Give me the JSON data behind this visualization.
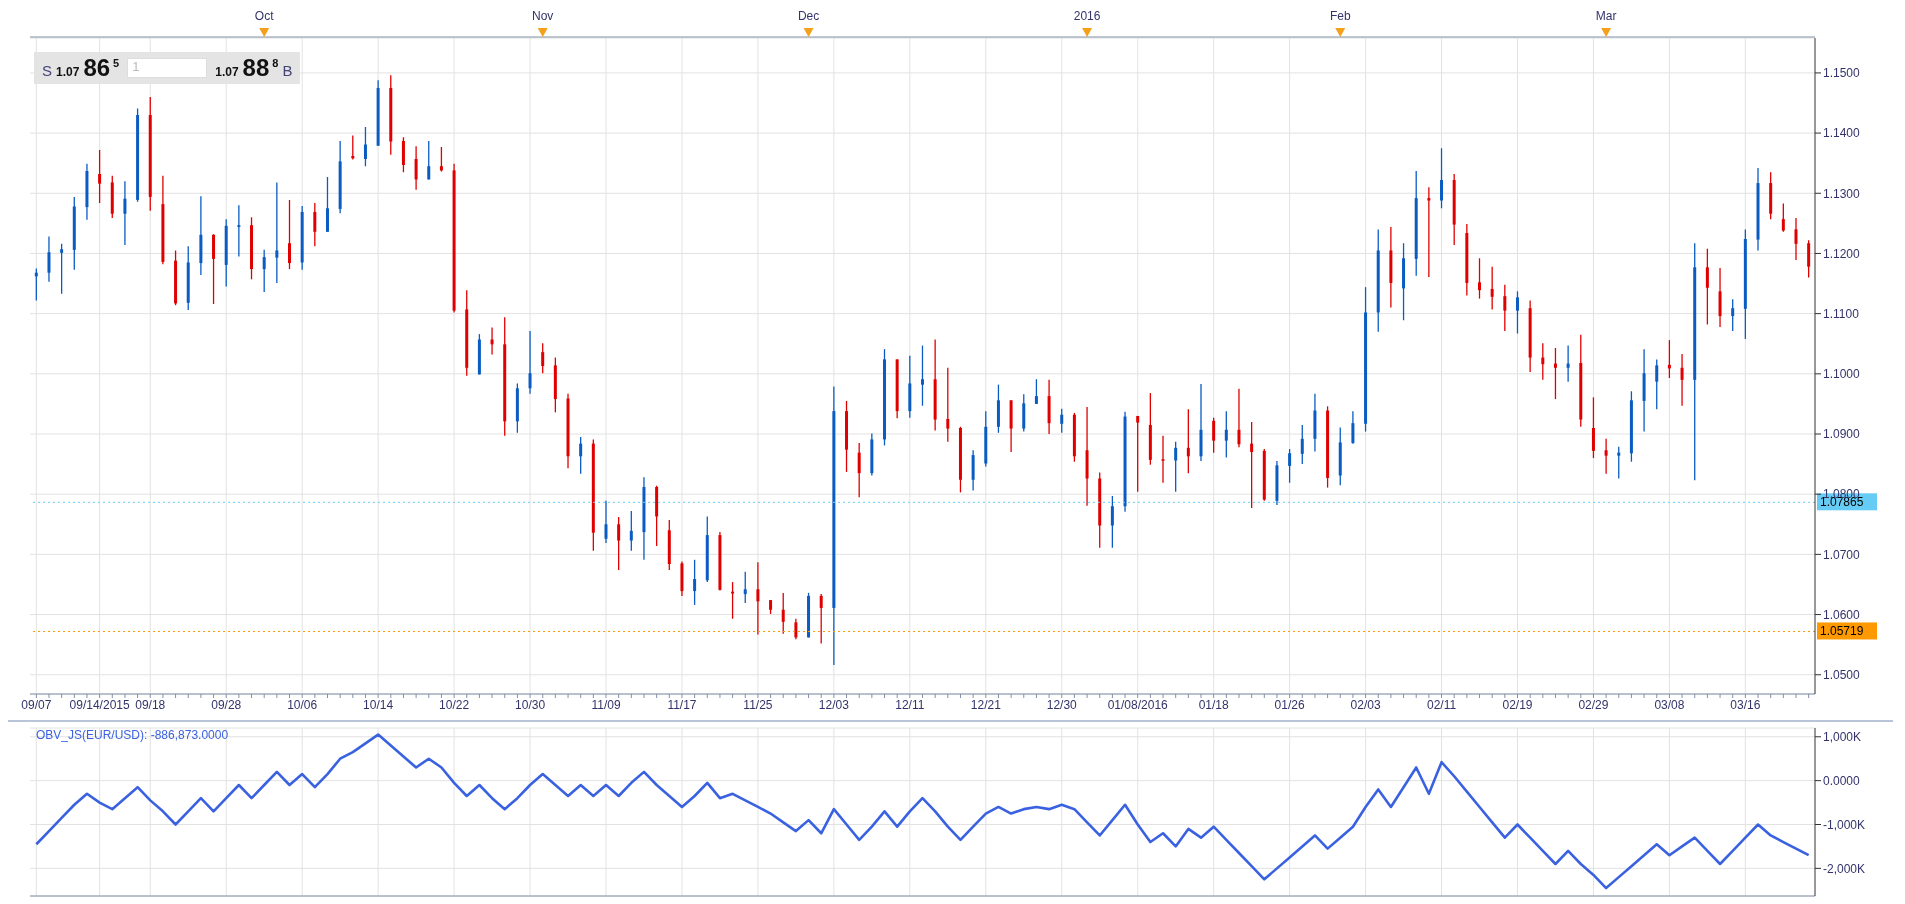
{
  "chart_data": [
    {
      "type": "candlestick",
      "categories": [
        "09/07",
        null,
        null,
        null,
        null,
        "09/14/2015",
        null,
        null,
        null,
        "09/18",
        null,
        null,
        null,
        null,
        null,
        "09/28",
        null,
        null,
        null,
        null,
        null,
        "10/06",
        null,
        null,
        null,
        null,
        null,
        "10/14",
        null,
        null,
        null,
        null,
        null,
        "10/22",
        null,
        null,
        null,
        null,
        null,
        "10/30",
        null,
        null,
        null,
        null,
        null,
        "11/09",
        null,
        null,
        null,
        null,
        null,
        "11/17",
        null,
        null,
        null,
        null,
        null,
        "11/25",
        null,
        null,
        null,
        null,
        null,
        "12/03",
        null,
        null,
        null,
        null,
        null,
        "12/11",
        null,
        null,
        null,
        null,
        null,
        "12/21",
        null,
        null,
        null,
        null,
        null,
        "12/30",
        null,
        null,
        null,
        null,
        null,
        "01/08/2016",
        null,
        null,
        null,
        null,
        null,
        "01/18",
        null,
        null,
        null,
        null,
        null,
        "01/26",
        null,
        null,
        null,
        null,
        null,
        "02/03",
        null,
        null,
        null,
        null,
        null,
        "02/11",
        null,
        null,
        null,
        null,
        null,
        "02/19",
        null,
        null,
        null,
        null,
        null,
        "02/29",
        null,
        null,
        null,
        null,
        null,
        "03/08",
        null,
        null,
        null,
        null,
        null,
        "03/16",
        null,
        null,
        null,
        null,
        null
      ],
      "ohlc": [
        [
          1.1162,
          1.1175,
          1.1122,
          1.1168
        ],
        [
          1.1168,
          1.1228,
          1.1153,
          1.1202
        ],
        [
          1.1201,
          1.1216,
          1.1133,
          1.1207
        ],
        [
          1.1206,
          1.1294,
          1.1173,
          1.1278
        ],
        [
          1.1277,
          1.1349,
          1.1256,
          1.1337
        ],
        [
          1.1332,
          1.1372,
          1.1284,
          1.1316
        ],
        [
          1.1318,
          1.1329,
          1.1259,
          1.1266
        ],
        [
          1.1266,
          1.132,
          1.1214,
          1.1291
        ],
        [
          1.1289,
          1.1441,
          1.1286,
          1.143
        ],
        [
          1.143,
          1.146,
          1.1271,
          1.1294
        ],
        [
          1.1282,
          1.1329,
          1.1182,
          1.1186
        ],
        [
          1.1188,
          1.1205,
          1.1114,
          1.1117
        ],
        [
          1.1118,
          1.1212,
          1.1106,
          1.1185
        ],
        [
          1.1184,
          1.1295,
          1.1164,
          1.1231
        ],
        [
          1.1231,
          1.1232,
          1.1116,
          1.1191
        ],
        [
          1.1181,
          1.1257,
          1.1145,
          1.1246
        ],
        [
          1.1244,
          1.128,
          1.1195,
          1.1247
        ],
        [
          1.1247,
          1.126,
          1.1157,
          1.1174
        ],
        [
          1.1174,
          1.1206,
          1.1136,
          1.1194
        ],
        [
          1.1193,
          1.1318,
          1.1151,
          1.1205
        ],
        [
          1.1217,
          1.1289,
          1.1174,
          1.1184
        ],
        [
          1.1185,
          1.1279,
          1.1173,
          1.1269
        ],
        [
          1.1269,
          1.1284,
          1.1212,
          1.1236
        ],
        [
          1.1236,
          1.1327,
          1.1236,
          1.1275
        ],
        [
          1.1274,
          1.1387,
          1.1267,
          1.1353
        ],
        [
          1.1362,
          1.1396,
          1.1356,
          1.1358
        ],
        [
          1.1357,
          1.141,
          1.1345,
          1.1381
        ],
        [
          1.1379,
          1.1488,
          1.1379,
          1.1475
        ],
        [
          1.1475,
          1.1496,
          1.1364,
          1.1386
        ],
        [
          1.1387,
          1.1393,
          1.1335,
          1.1347
        ],
        [
          1.1357,
          1.1378,
          1.1306,
          1.1323
        ],
        [
          1.1323,
          1.1387,
          1.1323,
          1.1345
        ],
        [
          1.1345,
          1.1377,
          1.1336,
          1.1338
        ],
        [
          1.1338,
          1.1349,
          1.1102,
          1.1105
        ],
        [
          1.1107,
          1.1139,
          1.0997,
          1.101
        ],
        [
          1.0999,
          1.1066,
          1.0999,
          1.1057
        ],
        [
          1.1057,
          1.1077,
          1.1032,
          1.1049
        ],
        [
          1.1049,
          1.1094,
          1.0897,
          1.0921
        ],
        [
          1.0921,
          1.0984,
          1.0902,
          1.0976
        ],
        [
          1.0976,
          1.1071,
          1.0967,
          1.1001
        ],
        [
          1.1036,
          1.1051,
          1.1001,
          1.1013
        ],
        [
          1.1014,
          1.1027,
          1.0936,
          1.0958
        ],
        [
          1.0959,
          1.0967,
          1.0843,
          1.0863
        ],
        [
          1.0863,
          1.0895,
          1.0834,
          1.0884
        ],
        [
          1.0884,
          1.0891,
          1.0706,
          1.0736
        ],
        [
          1.0726,
          1.0789,
          1.0719,
          1.075
        ],
        [
          1.075,
          1.0762,
          1.0674,
          1.0723
        ],
        [
          1.0723,
          1.0772,
          1.0706,
          1.0739
        ],
        [
          1.0737,
          1.0828,
          1.0691,
          1.0812
        ],
        [
          1.0812,
          1.0814,
          1.0714,
          1.0763
        ],
        [
          1.074,
          1.0757,
          1.0674,
          1.0684
        ],
        [
          1.0685,
          1.0688,
          1.0631,
          1.0639
        ],
        [
          1.0639,
          1.0691,
          1.0616,
          1.0659
        ],
        [
          1.0657,
          1.0763,
          1.0654,
          1.0732
        ],
        [
          1.0732,
          1.0737,
          1.064,
          1.0641
        ],
        [
          1.0638,
          1.0654,
          1.0593,
          1.0635
        ],
        [
          1.0634,
          1.0671,
          1.0619,
          1.0642
        ],
        [
          1.0642,
          1.0687,
          1.0567,
          1.0622
        ],
        [
          1.0624,
          1.0624,
          1.0601,
          1.0608
        ],
        [
          1.0608,
          1.0636,
          1.0568,
          1.0588
        ],
        [
          1.0587,
          1.0593,
          1.0559,
          1.0562
        ],
        [
          1.0562,
          1.0636,
          1.0562,
          1.0631
        ],
        [
          1.0631,
          1.0634,
          1.0552,
          1.0611
        ],
        [
          1.0611,
          1.0979,
          1.0516,
          1.0938
        ],
        [
          1.0938,
          1.0955,
          1.0837,
          1.0874
        ],
        [
          1.0869,
          1.0885,
          1.0795,
          1.0835
        ],
        [
          1.0835,
          1.0901,
          1.0831,
          1.0891
        ],
        [
          1.0891,
          1.1041,
          1.0881,
          1.1024
        ],
        [
          1.1024,
          1.1024,
          1.0926,
          1.0938
        ],
        [
          1.0938,
          1.103,
          1.0927,
          1.0984
        ],
        [
          1.0982,
          1.1047,
          1.0947,
          1.0991
        ],
        [
          1.0991,
          1.1057,
          1.0906,
          1.0924
        ],
        [
          1.0925,
          1.101,
          1.0887,
          1.0909
        ],
        [
          1.091,
          1.0912,
          1.0803,
          1.0824
        ],
        [
          1.0824,
          1.0873,
          1.0806,
          1.0865
        ],
        [
          1.0851,
          1.0938,
          1.0846,
          1.0912
        ],
        [
          1.0912,
          1.0982,
          1.0902,
          1.0956
        ],
        [
          1.0956,
          1.0956,
          1.087,
          1.0909
        ],
        [
          1.0909,
          1.0966,
          1.0904,
          1.0951
        ],
        [
          1.095,
          1.0991,
          1.095,
          1.0963
        ],
        [
          1.0963,
          1.099,
          1.09,
          1.0918
        ],
        [
          1.0917,
          1.0942,
          1.0902,
          1.0932
        ],
        [
          1.0932,
          1.0935,
          1.0854,
          1.0863
        ],
        [
          1.0873,
          1.0945,
          1.0781,
          1.0826
        ],
        [
          1.0826,
          1.0836,
          1.0711,
          1.0748
        ],
        [
          1.0748,
          1.0797,
          1.0711,
          1.078
        ],
        [
          1.078,
          1.0937,
          1.0771,
          1.0929
        ],
        [
          1.093,
          1.093,
          1.0804,
          1.0919
        ],
        [
          1.0915,
          1.0968,
          1.0849,
          1.0857
        ],
        [
          1.0858,
          1.0897,
          1.0819,
          1.0856
        ],
        [
          1.0856,
          1.0887,
          1.0804,
          1.0877
        ],
        [
          1.0877,
          1.0941,
          1.0835,
          1.0863
        ],
        [
          1.0863,
          1.0983,
          1.0855,
          1.0907
        ],
        [
          1.0922,
          1.0927,
          1.0869,
          1.0889
        ],
        [
          1.0889,
          1.0938,
          1.0861,
          1.0907
        ],
        [
          1.0907,
          1.0975,
          1.0878,
          1.0883
        ],
        [
          1.0884,
          1.092,
          1.0777,
          1.087
        ],
        [
          1.0872,
          1.0875,
          1.0789,
          1.0791
        ],
        [
          1.0789,
          1.0855,
          1.0782,
          1.0848
        ],
        [
          1.0847,
          1.0875,
          1.0819,
          1.0868
        ],
        [
          1.0867,
          1.0915,
          1.085,
          1.0892
        ],
        [
          1.0892,
          1.0967,
          1.0871,
          1.0939
        ],
        [
          1.0939,
          1.0946,
          1.0811,
          1.0827
        ],
        [
          1.0831,
          1.0911,
          1.0815,
          1.0886
        ],
        [
          1.0885,
          1.0938,
          1.0884,
          1.0918
        ],
        [
          1.0917,
          1.1144,
          1.0904,
          1.1102
        ],
        [
          1.1102,
          1.124,
          1.107,
          1.1205
        ],
        [
          1.1205,
          1.1244,
          1.111,
          1.1151
        ],
        [
          1.1142,
          1.1217,
          1.1089,
          1.1192
        ],
        [
          1.1191,
          1.1337,
          1.1163,
          1.1292
        ],
        [
          1.1292,
          1.131,
          1.1161,
          1.1288
        ],
        [
          1.1288,
          1.1375,
          1.1275,
          1.1322
        ],
        [
          1.1322,
          1.1332,
          1.1214,
          1.1248
        ],
        [
          1.1234,
          1.1249,
          1.113,
          1.1151
        ],
        [
          1.1152,
          1.1192,
          1.1125,
          1.1139
        ],
        [
          1.1141,
          1.1178,
          1.1107,
          1.1128
        ],
        [
          1.1129,
          1.1148,
          1.1071,
          1.1105
        ],
        [
          1.1105,
          1.1137,
          1.1067,
          1.1127
        ],
        [
          1.1109,
          1.1122,
          1.1003,
          1.1027
        ],
        [
          1.1027,
          1.1051,
          1.099,
          1.1016
        ],
        [
          1.1017,
          1.1043,
          1.0958,
          1.101
        ],
        [
          1.101,
          1.1047,
          1.0987,
          1.1017
        ],
        [
          1.1018,
          1.1065,
          1.0912,
          1.0924
        ],
        [
          1.091,
          1.0961,
          1.086,
          1.0872
        ],
        [
          1.0873,
          1.0892,
          1.0834,
          1.0864
        ],
        [
          1.0864,
          1.0879,
          1.0826,
          1.0869
        ],
        [
          1.0868,
          1.0971,
          1.0854,
          1.0956
        ],
        [
          1.0955,
          1.1041,
          1.0904,
          1.1001
        ],
        [
          1.0987,
          1.1024,
          1.0941,
          1.1014
        ],
        [
          1.1015,
          1.1056,
          1.0993,
          1.1009
        ],
        [
          1.101,
          1.1033,
          1.0947,
          1.099
        ],
        [
          1.099,
          1.1217,
          1.0823,
          1.1177
        ],
        [
          1.1177,
          1.1208,
          1.1082,
          1.1143
        ],
        [
          1.1137,
          1.1176,
          1.1078,
          1.1096
        ],
        [
          1.1096,
          1.1124,
          1.1071,
          1.1109
        ],
        [
          1.1108,
          1.124,
          1.1058,
          1.1224
        ],
        [
          1.1223,
          1.1342,
          1.1205,
          1.1317
        ],
        [
          1.1317,
          1.1335,
          1.1257,
          1.1266
        ],
        [
          1.1257,
          1.1283,
          1.1236,
          1.1238
        ],
        [
          1.124,
          1.1259,
          1.1189,
          1.1216
        ],
        [
          1.1217,
          1.1222,
          1.116,
          1.1178
        ]
      ],
      "colors": [
        "#0a5cc2",
        "#0a5cc2",
        "#0a5cc2",
        "#0a5cc2",
        "#0a5cc2",
        "#e00000",
        "#e00000",
        "#0a5cc2",
        "#0a5cc2",
        "#e00000",
        "#e00000",
        "#e00000",
        "#0a5cc2",
        "#0a5cc2",
        "#e00000",
        "#0a5cc2",
        "#0a5cc2",
        "#e00000",
        "#0a5cc2",
        "#0a5cc2",
        "#e00000",
        "#0a5cc2",
        "#e00000",
        "#0a5cc2",
        "#0a5cc2",
        "#e00000",
        "#0a5cc2",
        "#0a5cc2",
        "#e00000",
        "#e00000",
        "#e00000",
        "#0a5cc2",
        "#e00000",
        "#e00000",
        "#e00000",
        "#0a5cc2",
        "#e00000",
        "#e00000",
        "#0a5cc2",
        "#0a5cc2",
        "#e00000",
        "#e00000",
        "#e00000",
        "#0a5cc2",
        "#e00000",
        "#0a5cc2",
        "#e00000",
        "#0a5cc2",
        "#0a5cc2",
        "#e00000",
        "#e00000",
        "#e00000",
        "#0a5cc2",
        "#0a5cc2",
        "#e00000",
        "#e00000",
        "#0a5cc2",
        "#e00000",
        "#e00000",
        "#e00000",
        "#e00000",
        "#0a5cc2",
        "#e00000",
        "#0a5cc2",
        "#e00000",
        "#e00000",
        "#0a5cc2",
        "#0a5cc2",
        "#e00000",
        "#0a5cc2",
        "#0a5cc2",
        "#e00000",
        "#e00000",
        "#e00000",
        "#0a5cc2",
        "#0a5cc2",
        "#0a5cc2",
        "#e00000",
        "#0a5cc2",
        "#0a5cc2",
        "#e00000",
        "#0a5cc2",
        "#e00000",
        "#e00000",
        "#e00000",
        "#0a5cc2",
        "#0a5cc2",
        "#e00000",
        "#e00000",
        "#e00000",
        "#0a5cc2",
        "#e00000",
        "#0a5cc2",
        "#e00000",
        "#0a5cc2",
        "#e00000",
        "#e00000",
        "#e00000",
        "#0a5cc2",
        "#0a5cc2",
        "#0a5cc2",
        "#0a5cc2",
        "#e00000",
        "#0a5cc2",
        "#0a5cc2",
        "#0a5cc2",
        "#0a5cc2",
        "#e00000",
        "#0a5cc2",
        "#0a5cc2",
        "#e00000",
        "#0a5cc2",
        "#e00000",
        "#e00000",
        "#e00000",
        "#e00000",
        "#e00000",
        "#0a5cc2",
        "#e00000",
        "#e00000",
        "#e00000",
        "#0a5cc2",
        "#e00000",
        "#e00000",
        "#e00000",
        "#0a5cc2",
        "#0a5cc2",
        "#0a5cc2",
        "#0a5cc2",
        "#e00000",
        "#e00000",
        "#0a5cc2",
        "#e00000",
        "#e00000",
        "#0a5cc2",
        "#0a5cc2",
        "#0a5cc2",
        "#e00000",
        "#e00000",
        "#e00000",
        "#e00000"
      ],
      "ylim": [
        1.0468,
        1.1558
      ],
      "yticks": [
        {
          "value": 1.05,
          "label": "1.0500"
        },
        {
          "value": 1.06,
          "label": "1.0600"
        },
        {
          "value": 1.07,
          "label": "1.0700"
        },
        {
          "value": 1.08,
          "label": "1.0800"
        },
        {
          "value": 1.09,
          "label": "1.0900"
        },
        {
          "value": 1.1,
          "label": "1.1000"
        },
        {
          "value": 1.11,
          "label": "1.1100"
        },
        {
          "value": 1.12,
          "label": "1.1200"
        },
        {
          "value": 1.13,
          "label": "1.1300"
        },
        {
          "value": 1.14,
          "label": "1.1400"
        },
        {
          "value": 1.15,
          "label": "1.1500"
        }
      ],
      "grid": true,
      "ref_lines": [
        {
          "axis": "y",
          "value": 1.05719,
          "label": "1.05719",
          "color": "#ff9900",
          "line_style": "dotted"
        },
        {
          "axis": "y",
          "value": 1.07865,
          "label": "1.07865",
          "color": "#66ccf5",
          "line_style": "dotted"
        }
      ],
      "annotations": [
        "S 1.07 86$^{5}$",
        "1",
        "1.07 88$^{8}$ B",
        "Oct",
        "Nov",
        "Dec",
        "2016",
        "Feb",
        "Mar"
      ]
    },
    {
      "type": "line",
      "categories": [
        null,
        null,
        null,
        null,
        null,
        null,
        null,
        null,
        null,
        null,
        null,
        null,
        null,
        null,
        null,
        null,
        null,
        null,
        null,
        null,
        null,
        null,
        null,
        null,
        null,
        null,
        null,
        null,
        null,
        null,
        null,
        null,
        null,
        null,
        null,
        null,
        null,
        null,
        null,
        null,
        null,
        null,
        null,
        null,
        null,
        null,
        null,
        null,
        null,
        null,
        null,
        null,
        null,
        null,
        null,
        null,
        null,
        null,
        null,
        null,
        null,
        null,
        null,
        null,
        null,
        null,
        null,
        null,
        null,
        null,
        null,
        null,
        null,
        null,
        null,
        null,
        null,
        null,
        null,
        null,
        null,
        null,
        null,
        null,
        null,
        null,
        null,
        null,
        null,
        null,
        null,
        null,
        null,
        null,
        null,
        null,
        null,
        null,
        null,
        null,
        null,
        null,
        null,
        null,
        null,
        null,
        null,
        null,
        null,
        null,
        null,
        null,
        null,
        null,
        null,
        null,
        null,
        null,
        null,
        null,
        null,
        null,
        null,
        null,
        null,
        null,
        null,
        null,
        null,
        null,
        null,
        null,
        null,
        null,
        null,
        null,
        null,
        null,
        null,
        null,
        null
      ],
      "series": [
        {
          "color": "#3a62e0",
          "values": [
            -1450,
            -1150,
            -850,
            -550,
            -300,
            -500,
            -650,
            -400,
            -150,
            -450,
            -700,
            -1000,
            -700,
            -400,
            -700,
            -400,
            -100,
            -400,
            -100,
            200,
            -100,
            150,
            -150,
            150,
            500,
            650,
            850,
            1050,
            800,
            550,
            300,
            500,
            300,
            -50,
            -350,
            -100,
            -400,
            -650,
            -400,
            -100,
            150,
            -100,
            -350,
            -100,
            -350,
            -100,
            -350,
            -50,
            200,
            -100,
            -350,
            -600,
            -350,
            -50,
            -400,
            -300,
            -450,
            -600,
            -750,
            -950,
            -1150,
            -900,
            -1200,
            -650,
            -1000,
            -1350,
            -1050,
            -700,
            -1050,
            -700,
            -400,
            -700,
            -1050,
            -1350,
            -1050,
            -750,
            -600,
            -750,
            -650,
            -600,
            -650,
            -550,
            -650,
            -950,
            -1250,
            -900,
            -550,
            -1000,
            -1400,
            -1200,
            -1500,
            -1100,
            -1300,
            -1050,
            -1350,
            -1650,
            -1950,
            -2250,
            -2000,
            -1750,
            -1500,
            -1250,
            -1550,
            -1300,
            -1050,
            -600,
            -200,
            -600,
            -150,
            300,
            -300,
            420,
            100,
            -250,
            -600,
            -950,
            -1300,
            -1000,
            -1300,
            -1600,
            -1900,
            -1600,
            -1900,
            -2150,
            -2450,
            -2200,
            -1950,
            -1700,
            -1450,
            -1700,
            -1500,
            -1300,
            -1600,
            -1900,
            -1600,
            -1300,
            -1000,
            -1250,
            -1400,
            -1550,
            -1700
          ]
        }
      ],
      "ylim": [
        -2630,
        1200
      ],
      "yticks": [
        {
          "value": 1000,
          "label": "1,000K"
        },
        {
          "value": 0,
          "label": "0.0000"
        },
        {
          "value": -1000,
          "label": "-1,000K"
        },
        {
          "value": -2000,
          "label": "-2,000K"
        }
      ],
      "grid": true,
      "tick_labels": "y",
      "annotations": [
        "OBV_JS(EUR/USD): -886,873.0000"
      ]
    }
  ]
}
